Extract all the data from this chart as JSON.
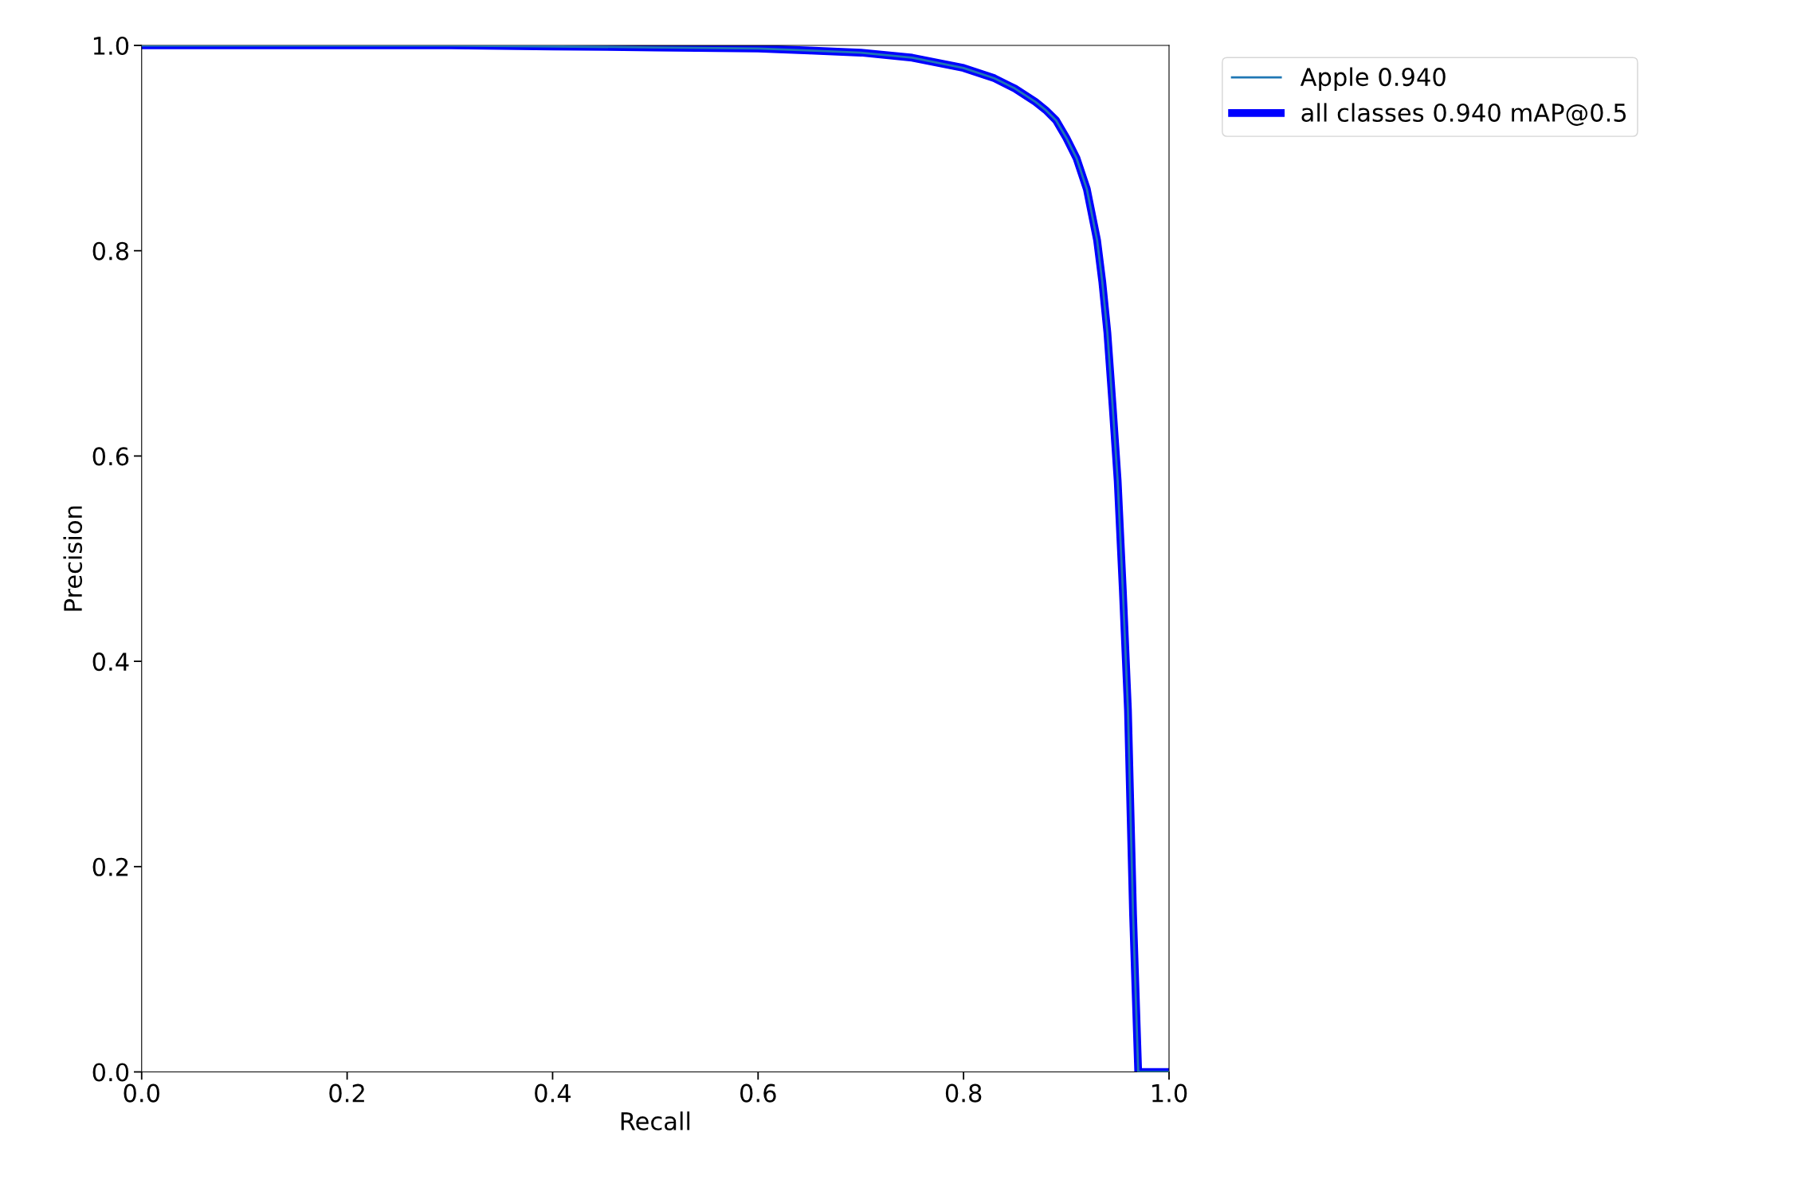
{
  "chart_data": {
    "type": "line",
    "xlabel": "Recall",
    "ylabel": "Precision",
    "xlim": [
      0,
      1
    ],
    "ylim": [
      0,
      1
    ],
    "xticks": [
      {
        "value": 0,
        "label": "0.0"
      },
      0.2,
      0.4,
      0.6,
      0.8,
      {
        "value": 1,
        "label": "1.0"
      }
    ],
    "yticks": [
      {
        "value": 0,
        "label": "0.0"
      },
      0.2,
      0.4,
      0.6,
      0.8,
      {
        "value": 1,
        "label": "1.0"
      }
    ],
    "x": [
      0,
      0.1,
      0.2,
      0.3,
      0.4,
      0.5,
      0.6,
      0.65,
      0.7,
      0.75,
      0.8,
      0.83,
      0.85,
      0.87,
      0.88,
      0.89,
      0.9,
      0.91,
      0.92,
      0.93,
      0.935,
      0.94,
      0.945,
      0.95,
      0.955,
      0.96,
      0.965,
      0.97,
      0.98,
      1.0
    ],
    "series": [
      {
        "name": "Apple 0.940",
        "color": "#1f77b4",
        "values": [
          1.0,
          1.0,
          1.0,
          1.0,
          0.999,
          0.998,
          0.997,
          0.995,
          0.993,
          0.988,
          0.978,
          0.968,
          0.958,
          0.945,
          0.937,
          0.927,
          0.91,
          0.89,
          0.86,
          0.81,
          0.77,
          0.72,
          0.65,
          0.576,
          0.47,
          0.353,
          0.153,
          0,
          0,
          0
        ]
      },
      {
        "name": "all classes 0.940 mAP@0.5",
        "color": "#0000ff",
        "values": [
          1.0,
          1.0,
          1.0,
          1.0,
          0.999,
          0.998,
          0.997,
          0.995,
          0.993,
          0.988,
          0.978,
          0.968,
          0.958,
          0.945,
          0.937,
          0.927,
          0.91,
          0.89,
          0.86,
          0.81,
          0.77,
          0.72,
          0.65,
          0.576,
          0.47,
          0.353,
          0.153,
          0,
          0,
          0
        ]
      }
    ],
    "legend": "top right",
    "grid": false
  }
}
